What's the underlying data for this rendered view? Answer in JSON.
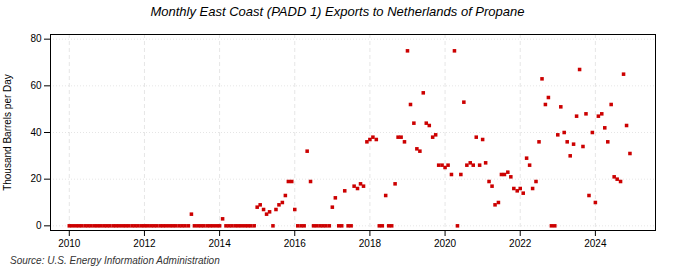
{
  "chart_data": {
    "type": "scatter",
    "title": "Monthly East Coast (PADD 1) Exports to Netherlands of Propane",
    "ylabel": "Thousand Barrels per Day",
    "source": "Source: U.S. Energy Information Administration",
    "color": "#cc0000",
    "marker": "square",
    "grid": true,
    "xlim": [
      2009.5,
      2025.6
    ],
    "xticks": [
      2010,
      2012,
      2014,
      2016,
      2018,
      2020,
      2022,
      2024
    ],
    "ylim": [
      -2,
      82
    ],
    "yticks": [
      0,
      20,
      40,
      60,
      80
    ],
    "x": [
      2010.0,
      2010.08,
      2010.17,
      2010.25,
      2010.33,
      2010.42,
      2010.5,
      2010.58,
      2010.67,
      2010.75,
      2010.83,
      2010.92,
      2011.0,
      2011.08,
      2011.17,
      2011.25,
      2011.33,
      2011.42,
      2011.5,
      2011.58,
      2011.67,
      2011.75,
      2011.83,
      2011.92,
      2012.0,
      2012.08,
      2012.17,
      2012.25,
      2012.33,
      2012.42,
      2012.5,
      2012.58,
      2012.67,
      2012.75,
      2012.83,
      2012.92,
      2013.0,
      2013.08,
      2013.17,
      2013.25,
      2013.33,
      2013.42,
      2013.5,
      2013.58,
      2013.67,
      2013.75,
      2013.83,
      2013.92,
      2014.0,
      2014.08,
      2014.17,
      2014.25,
      2014.33,
      2014.42,
      2014.5,
      2014.58,
      2014.67,
      2014.75,
      2014.83,
      2014.92,
      2015.0,
      2015.08,
      2015.17,
      2015.25,
      2015.33,
      2015.42,
      2015.5,
      2015.58,
      2015.67,
      2015.75,
      2015.83,
      2015.92,
      2016.0,
      2016.08,
      2016.17,
      2016.25,
      2016.33,
      2016.42,
      2016.5,
      2016.58,
      2016.67,
      2016.75,
      2016.83,
      2016.92,
      2017.0,
      2017.08,
      2017.17,
      2017.25,
      2017.33,
      2017.42,
      2017.5,
      2017.58,
      2017.67,
      2017.75,
      2017.83,
      2017.92,
      2018.0,
      2018.08,
      2018.17,
      2018.25,
      2018.33,
      2018.42,
      2018.5,
      2018.58,
      2018.67,
      2018.75,
      2018.83,
      2018.92,
      2019.0,
      2019.08,
      2019.17,
      2019.25,
      2019.33,
      2019.42,
      2019.5,
      2019.58,
      2019.67,
      2019.75,
      2019.83,
      2019.92,
      2020.0,
      2020.08,
      2020.17,
      2020.25,
      2020.33,
      2020.42,
      2020.5,
      2020.58,
      2020.67,
      2020.75,
      2020.83,
      2020.92,
      2021.0,
      2021.08,
      2021.17,
      2021.25,
      2021.33,
      2021.42,
      2021.5,
      2021.58,
      2021.67,
      2021.75,
      2021.83,
      2021.92,
      2022.0,
      2022.08,
      2022.17,
      2022.25,
      2022.33,
      2022.42,
      2022.5,
      2022.58,
      2022.67,
      2022.75,
      2022.83,
      2022.92,
      2023.0,
      2023.08,
      2023.17,
      2023.25,
      2023.33,
      2023.42,
      2023.5,
      2023.58,
      2023.67,
      2023.75,
      2023.83,
      2023.92,
      2024.0,
      2024.08,
      2024.17,
      2024.25,
      2024.33,
      2024.42,
      2024.5,
      2024.58,
      2024.67,
      2024.75,
      2024.83,
      2024.92
    ],
    "values": [
      0,
      0,
      0,
      0,
      0,
      0,
      0,
      0,
      0,
      0,
      0,
      0,
      0,
      0,
      0,
      0,
      0,
      0,
      0,
      0,
      0,
      0,
      0,
      0,
      0,
      0,
      0,
      0,
      0,
      0,
      0,
      0,
      0,
      0,
      0,
      0,
      0,
      0,
      0,
      5,
      0,
      0,
      0,
      0,
      0,
      0,
      0,
      0,
      0,
      3,
      0,
      0,
      0,
      0,
      0,
      0,
      0,
      0,
      0,
      0,
      8,
      9,
      7,
      5,
      6,
      0,
      7,
      9,
      10,
      13,
      19,
      19,
      7,
      0,
      0,
      0,
      32,
      19,
      0,
      0,
      0,
      0,
      0,
      0,
      8,
      12,
      0,
      0,
      15,
      0,
      0,
      17,
      16,
      18,
      17,
      36,
      37,
      38,
      37,
      0,
      0,
      13,
      0,
      0,
      18,
      38,
      38,
      36,
      75,
      52,
      44,
      33,
      32,
      57,
      44,
      43,
      38,
      39,
      26,
      26,
      25,
      26,
      22,
      75,
      0,
      22,
      53,
      26,
      27,
      26,
      38,
      26,
      37,
      27,
      19,
      17,
      9,
      10,
      22,
      22,
      23,
      21,
      16,
      15,
      16,
      14,
      29,
      26,
      16,
      19,
      36,
      63,
      52,
      55,
      0,
      0,
      39,
      51,
      40,
      36,
      30,
      35,
      47,
      67,
      34,
      48,
      13,
      40,
      10,
      47,
      48,
      42,
      36,
      52,
      21,
      20,
      19,
      65,
      43,
      31
    ]
  }
}
